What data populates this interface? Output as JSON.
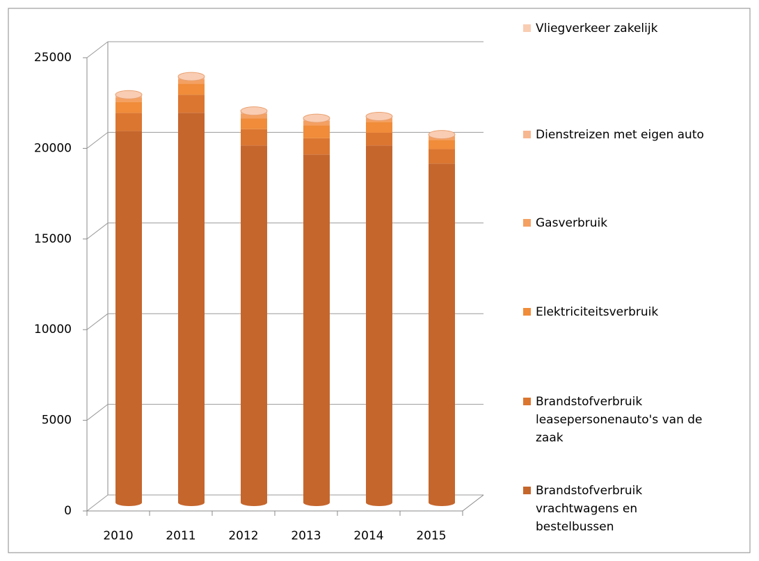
{
  "chart_data": {
    "type": "bar3d_stacked",
    "categories": [
      "2010",
      "2011",
      "2012",
      "2013",
      "2014",
      "2015"
    ],
    "series": [
      {
        "name": "Brandstofverbruik vrachtwagens en bestelbussen",
        "color": "#c5662d",
        "values": [
          20500,
          21500,
          19700,
          19200,
          19700,
          18700
        ]
      },
      {
        "name": "Brandstofverbruik leasepersonenauto's van de zaak",
        "color": "#db7631",
        "values": [
          1000,
          1000,
          900,
          900,
          700,
          800
        ]
      },
      {
        "name": "Elektriciteitsverbruik",
        "color": "#f08c3a",
        "values": [
          600,
          600,
          600,
          700,
          600,
          500
        ]
      },
      {
        "name": "Gasverbruik",
        "color": "#f4a062",
        "values": [
          250,
          250,
          250,
          250,
          200,
          200
        ]
      },
      {
        "name": "Dienstreizen met eigen auto",
        "color": "#f7b791",
        "values": [
          100,
          100,
          100,
          100,
          50,
          50
        ]
      },
      {
        "name": "Vliegverkeer zakelijk",
        "color": "#f9cdb3",
        "values": [
          50,
          50,
          50,
          50,
          50,
          50
        ]
      }
    ],
    "ylim": [
      0,
      25000
    ],
    "yticks": [
      0,
      5000,
      10000,
      15000,
      20000,
      25000
    ],
    "grid": true,
    "legend": "right"
  }
}
